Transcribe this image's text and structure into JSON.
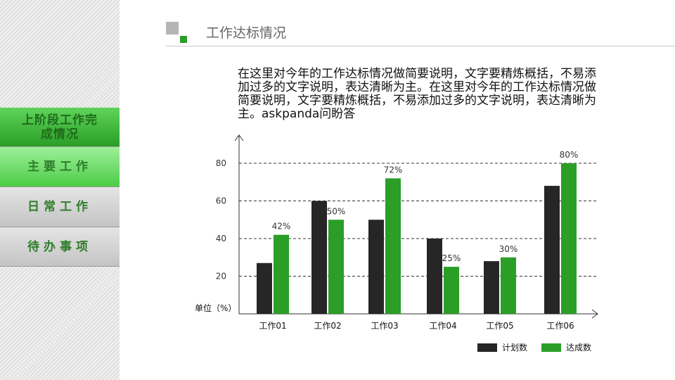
{
  "sidebar": {
    "items": [
      {
        "label": "上阶段工作完成情况"
      },
      {
        "label": "主要工作"
      },
      {
        "label": "日常工作"
      },
      {
        "label": "待办事项"
      }
    ]
  },
  "header": {
    "title": "工作达标情况"
  },
  "description": "在这里对今年的工作达标情况做简要说明，文字要精炼概括，不易添加过多的文字说明，表达清晰为主。在这里对今年的工作达标情况做简要说明，文字要精炼概括，不易添加过多的文字说明，表达清晰为主。askpanda问盼答",
  "colors": {
    "accent": "#2a9e26",
    "dark": "#262626"
  },
  "chart_data": {
    "type": "bar",
    "categories": [
      "工作01",
      "工作02",
      "工作03",
      "工作04",
      "工作05",
      "工作06"
    ],
    "series": [
      {
        "name": "计划数",
        "values": [
          27,
          60,
          50,
          40,
          28,
          68
        ],
        "color": "#262626"
      },
      {
        "name": "达成数",
        "values": [
          42,
          50,
          72,
          25,
          30,
          80
        ],
        "color": "#2a9e26",
        "labels": [
          "42%",
          "50%",
          "72%",
          "25%",
          "30%",
          "80%"
        ]
      }
    ],
    "ylabel": "单位（%）",
    "yticks": [
      20,
      40,
      60,
      80
    ],
    "ylim": [
      0,
      80
    ],
    "grid": "dashed horizontal",
    "legend": "bottom-right"
  }
}
